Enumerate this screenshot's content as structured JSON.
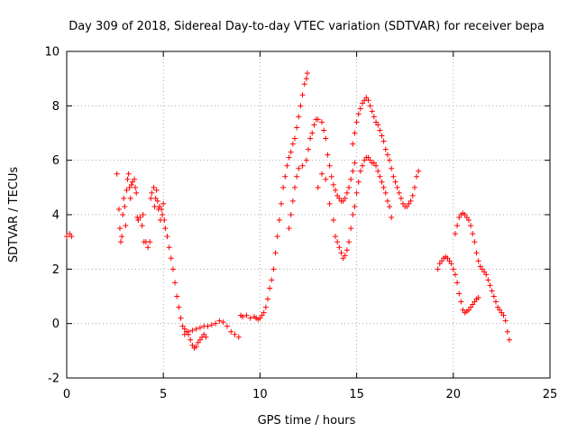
{
  "chart_data": {
    "type": "scatter",
    "title": "Day 309 of 2018, Sidereal Day-to-day VTEC variation (SDTVAR) for receiver bepa",
    "xlabel": "GPS time / hours",
    "ylabel": "SDTVAR / TECUs",
    "xlim": [
      0,
      25
    ],
    "ylim": [
      -2,
      10
    ],
    "xticks": [
      "0",
      "5",
      "10",
      "15",
      "20",
      "25"
    ],
    "yticks": [
      "-2",
      "0",
      "2",
      "4",
      "6",
      "8",
      "10"
    ],
    "grid": true,
    "marker": "+",
    "color": "#ff0000",
    "series": [
      {
        "name": "SDTVAR",
        "points": [
          [
            0.0,
            3.2
          ],
          [
            0.15,
            3.3
          ],
          [
            0.25,
            3.2
          ],
          [
            2.6,
            5.5
          ],
          [
            2.7,
            4.2
          ],
          [
            2.75,
            3.5
          ],
          [
            2.8,
            3.0
          ],
          [
            2.85,
            3.2
          ],
          [
            2.9,
            4.0
          ],
          [
            2.95,
            4.6
          ],
          [
            3.0,
            4.3
          ],
          [
            3.05,
            3.6
          ],
          [
            3.1,
            4.9
          ],
          [
            3.15,
            5.3
          ],
          [
            3.2,
            5.5
          ],
          [
            3.25,
            5.0
          ],
          [
            3.3,
            4.6
          ],
          [
            3.35,
            5.1
          ],
          [
            3.4,
            5.2
          ],
          [
            3.5,
            5.3
          ],
          [
            3.55,
            5.0
          ],
          [
            3.6,
            4.8
          ],
          [
            3.65,
            3.9
          ],
          [
            3.7,
            3.8
          ],
          [
            3.8,
            3.9
          ],
          [
            3.9,
            3.6
          ],
          [
            3.95,
            4.0
          ],
          [
            4.0,
            3.0
          ],
          [
            4.1,
            3.0
          ],
          [
            4.2,
            2.8
          ],
          [
            4.3,
            3.0
          ],
          [
            4.35,
            4.6
          ],
          [
            4.4,
            4.8
          ],
          [
            4.5,
            5.0
          ],
          [
            4.55,
            4.3
          ],
          [
            4.6,
            4.6
          ],
          [
            4.65,
            4.9
          ],
          [
            4.7,
            4.5
          ],
          [
            4.75,
            4.2
          ],
          [
            4.8,
            4.3
          ],
          [
            4.85,
            3.8
          ],
          [
            4.9,
            4.2
          ],
          [
            4.95,
            4.0
          ],
          [
            5.0,
            4.4
          ],
          [
            5.05,
            3.8
          ],
          [
            5.1,
            3.5
          ],
          [
            5.2,
            3.2
          ],
          [
            5.3,
            2.8
          ],
          [
            5.4,
            2.4
          ],
          [
            5.5,
            2.0
          ],
          [
            5.6,
            1.5
          ],
          [
            5.7,
            1.0
          ],
          [
            5.8,
            0.6
          ],
          [
            5.9,
            0.2
          ],
          [
            6.0,
            -0.1
          ],
          [
            6.1,
            -0.4
          ],
          [
            6.2,
            -0.3
          ],
          [
            6.3,
            -0.4
          ],
          [
            6.4,
            -0.6
          ],
          [
            6.5,
            -0.8
          ],
          [
            6.6,
            -0.9
          ],
          [
            6.7,
            -0.85
          ],
          [
            6.8,
            -0.7
          ],
          [
            6.9,
            -0.6
          ],
          [
            7.0,
            -0.5
          ],
          [
            7.1,
            -0.4
          ],
          [
            7.2,
            -0.5
          ],
          [
            6.1,
            -0.2
          ],
          [
            6.3,
            -0.3
          ],
          [
            6.5,
            -0.25
          ],
          [
            6.7,
            -0.2
          ],
          [
            6.9,
            -0.15
          ],
          [
            7.1,
            -0.1
          ],
          [
            7.3,
            -0.1
          ],
          [
            7.5,
            -0.05
          ],
          [
            7.7,
            0.0
          ],
          [
            7.9,
            0.1
          ],
          [
            8.1,
            0.05
          ],
          [
            8.3,
            -0.1
          ],
          [
            8.5,
            -0.3
          ],
          [
            8.7,
            -0.4
          ],
          [
            8.9,
            -0.5
          ],
          [
            9.0,
            0.3
          ],
          [
            9.1,
            0.25
          ],
          [
            9.3,
            0.3
          ],
          [
            9.5,
            0.2
          ],
          [
            9.7,
            0.25
          ],
          [
            9.8,
            0.2
          ],
          [
            9.9,
            0.15
          ],
          [
            10.0,
            0.2
          ],
          [
            10.1,
            0.3
          ],
          [
            10.2,
            0.4
          ],
          [
            10.3,
            0.6
          ],
          [
            10.4,
            0.9
          ],
          [
            10.5,
            1.3
          ],
          [
            10.6,
            1.6
          ],
          [
            10.7,
            2.0
          ],
          [
            10.8,
            2.6
          ],
          [
            10.9,
            3.2
          ],
          [
            11.0,
            3.8
          ],
          [
            11.1,
            4.4
          ],
          [
            11.2,
            5.0
          ],
          [
            11.3,
            5.4
          ],
          [
            11.4,
            5.8
          ],
          [
            11.5,
            6.1
          ],
          [
            11.6,
            6.3
          ],
          [
            11.7,
            6.6
          ],
          [
            11.8,
            6.8
          ],
          [
            11.9,
            7.2
          ],
          [
            12.0,
            7.6
          ],
          [
            12.1,
            8.0
          ],
          [
            12.2,
            8.4
          ],
          [
            12.3,
            8.8
          ],
          [
            12.4,
            9.0
          ],
          [
            12.45,
            9.2
          ],
          [
            11.5,
            3.5
          ],
          [
            11.6,
            4.0
          ],
          [
            11.7,
            4.5
          ],
          [
            11.8,
            5.0
          ],
          [
            11.9,
            5.4
          ],
          [
            12.0,
            5.7
          ],
          [
            12.2,
            5.8
          ],
          [
            12.4,
            6.0
          ],
          [
            12.5,
            6.4
          ],
          [
            12.6,
            6.8
          ],
          [
            12.7,
            7.0
          ],
          [
            12.8,
            7.3
          ],
          [
            12.9,
            7.5
          ],
          [
            13.0,
            7.5
          ],
          [
            13.2,
            7.4
          ],
          [
            13.3,
            7.1
          ],
          [
            13.4,
            6.8
          ],
          [
            13.5,
            6.2
          ],
          [
            13.6,
            5.8
          ],
          [
            13.7,
            5.4
          ],
          [
            13.8,
            5.1
          ],
          [
            13.9,
            4.9
          ],
          [
            14.0,
            4.7
          ],
          [
            14.1,
            4.6
          ],
          [
            14.2,
            4.5
          ],
          [
            14.3,
            4.5
          ],
          [
            14.4,
            4.6
          ],
          [
            14.5,
            4.8
          ],
          [
            14.6,
            5.0
          ],
          [
            14.7,
            5.3
          ],
          [
            14.8,
            5.6
          ],
          [
            14.9,
            5.9
          ],
          [
            13.0,
            5.0
          ],
          [
            13.2,
            5.5
          ],
          [
            13.4,
            5.3
          ],
          [
            13.6,
            4.4
          ],
          [
            13.8,
            3.8
          ],
          [
            13.9,
            3.2
          ],
          [
            14.0,
            3.0
          ],
          [
            14.1,
            2.8
          ],
          [
            14.2,
            2.6
          ],
          [
            14.3,
            2.4
          ],
          [
            14.4,
            2.5
          ],
          [
            14.5,
            2.7
          ],
          [
            14.6,
            3.0
          ],
          [
            14.7,
            3.5
          ],
          [
            14.8,
            4.0
          ],
          [
            14.9,
            4.3
          ],
          [
            15.0,
            4.8
          ],
          [
            15.1,
            5.2
          ],
          [
            15.2,
            5.6
          ],
          [
            15.3,
            5.8
          ],
          [
            15.4,
            6.0
          ],
          [
            15.5,
            6.1
          ],
          [
            15.6,
            6.1
          ],
          [
            15.7,
            6.0
          ],
          [
            15.8,
            5.9
          ],
          [
            15.9,
            5.9
          ],
          [
            16.0,
            5.8
          ],
          [
            16.1,
            5.6
          ],
          [
            16.2,
            5.4
          ],
          [
            16.3,
            5.2
          ],
          [
            16.4,
            5.0
          ],
          [
            16.5,
            4.8
          ],
          [
            16.6,
            4.5
          ],
          [
            16.7,
            4.3
          ],
          [
            16.8,
            3.9
          ],
          [
            14.8,
            6.6
          ],
          [
            14.9,
            7.0
          ],
          [
            15.0,
            7.4
          ],
          [
            15.1,
            7.7
          ],
          [
            15.2,
            7.9
          ],
          [
            15.3,
            8.1
          ],
          [
            15.4,
            8.2
          ],
          [
            15.5,
            8.3
          ],
          [
            15.6,
            8.2
          ],
          [
            15.7,
            8.0
          ],
          [
            15.8,
            7.8
          ],
          [
            15.9,
            7.6
          ],
          [
            16.0,
            7.4
          ],
          [
            16.1,
            7.3
          ],
          [
            16.2,
            7.1
          ],
          [
            16.3,
            6.9
          ],
          [
            16.4,
            6.7
          ],
          [
            16.5,
            6.4
          ],
          [
            16.6,
            6.2
          ],
          [
            16.7,
            6.0
          ],
          [
            16.8,
            5.7
          ],
          [
            16.9,
            5.4
          ],
          [
            17.0,
            5.2
          ],
          [
            17.1,
            5.0
          ],
          [
            17.2,
            4.8
          ],
          [
            17.3,
            4.6
          ],
          [
            17.4,
            4.4
          ],
          [
            17.5,
            4.3
          ],
          [
            17.6,
            4.3
          ],
          [
            17.7,
            4.4
          ],
          [
            17.8,
            4.5
          ],
          [
            17.9,
            4.7
          ],
          [
            18.0,
            5.0
          ],
          [
            18.1,
            5.4
          ],
          [
            18.2,
            5.6
          ],
          [
            19.2,
            2.0
          ],
          [
            19.3,
            2.2
          ],
          [
            19.4,
            2.3
          ],
          [
            19.5,
            2.4
          ],
          [
            19.6,
            2.45
          ],
          [
            19.7,
            2.4
          ],
          [
            19.8,
            2.3
          ],
          [
            19.9,
            2.2
          ],
          [
            20.0,
            2.0
          ],
          [
            20.1,
            1.8
          ],
          [
            20.2,
            1.5
          ],
          [
            20.3,
            1.1
          ],
          [
            20.4,
            0.8
          ],
          [
            20.5,
            0.5
          ],
          [
            20.6,
            0.4
          ],
          [
            20.7,
            0.45
          ],
          [
            20.8,
            0.5
          ],
          [
            20.9,
            0.6
          ],
          [
            21.0,
            0.7
          ],
          [
            21.1,
            0.8
          ],
          [
            21.2,
            0.9
          ],
          [
            21.3,
            0.95
          ],
          [
            20.1,
            3.3
          ],
          [
            20.2,
            3.6
          ],
          [
            20.3,
            3.9
          ],
          [
            20.4,
            4.0
          ],
          [
            20.5,
            4.05
          ],
          [
            20.6,
            4.0
          ],
          [
            20.7,
            3.9
          ],
          [
            20.8,
            3.8
          ],
          [
            20.9,
            3.6
          ],
          [
            21.0,
            3.3
          ],
          [
            21.1,
            3.0
          ],
          [
            21.2,
            2.6
          ],
          [
            21.3,
            2.3
          ],
          [
            21.4,
            2.1
          ],
          [
            21.5,
            2.0
          ],
          [
            21.6,
            1.9
          ],
          [
            21.7,
            1.8
          ],
          [
            21.8,
            1.6
          ],
          [
            21.9,
            1.4
          ],
          [
            22.0,
            1.2
          ],
          [
            22.1,
            1.0
          ],
          [
            22.2,
            0.8
          ],
          [
            22.3,
            0.6
          ],
          [
            22.4,
            0.5
          ],
          [
            22.5,
            0.4
          ],
          [
            22.6,
            0.3
          ],
          [
            22.7,
            0.1
          ],
          [
            22.8,
            -0.3
          ],
          [
            22.9,
            -0.6
          ]
        ]
      }
    ]
  }
}
